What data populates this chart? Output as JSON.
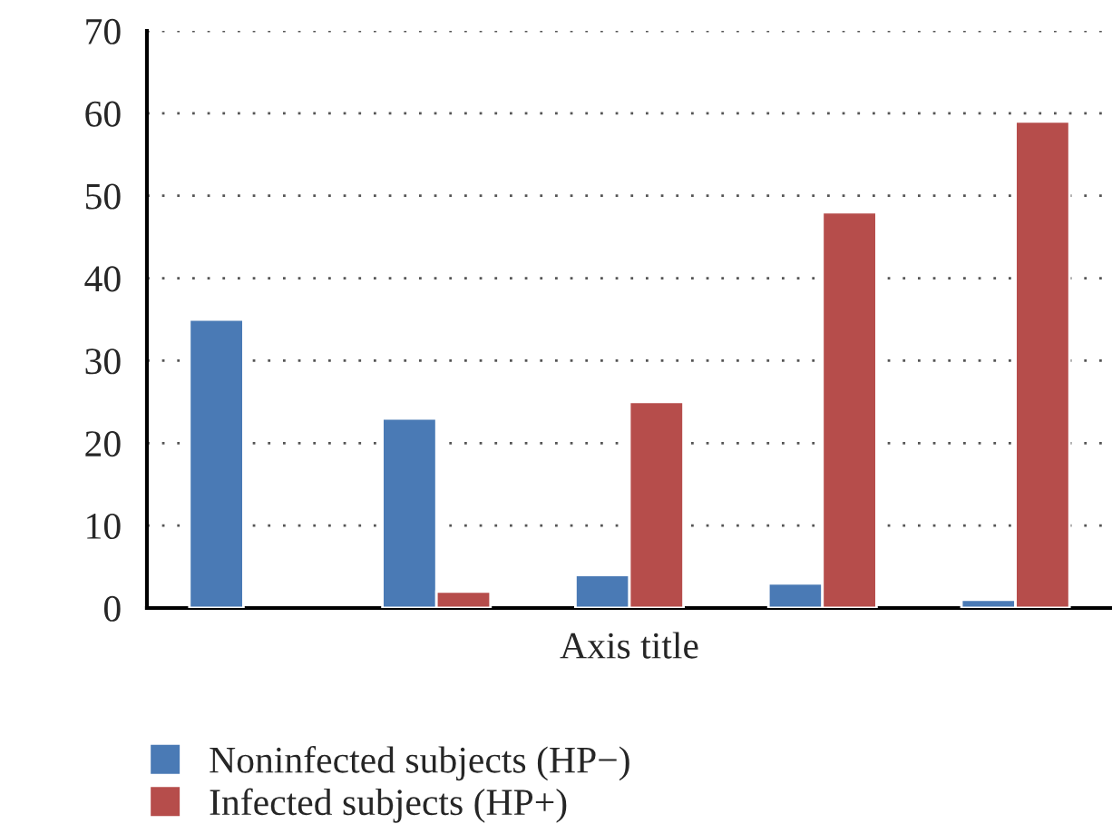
{
  "chart_data": {
    "type": "bar",
    "xlabel": "Axis title",
    "categories": [
      null,
      null,
      null,
      null,
      null
    ],
    "series": [
      {
        "name": "Noninfected subjects (HP−)",
        "color": "#4a7ab5",
        "values": [
          35,
          23,
          4,
          3,
          1
        ]
      },
      {
        "name": "Infected subjects (HP+)",
        "color": "#b64d4b",
        "values": [
          null,
          2,
          25,
          48,
          59
        ]
      }
    ],
    "ylim": [
      0,
      70
    ],
    "yticks": [
      0,
      10,
      20,
      30,
      40,
      50,
      60,
      70
    ],
    "grid": "y",
    "legend": "bottom"
  }
}
